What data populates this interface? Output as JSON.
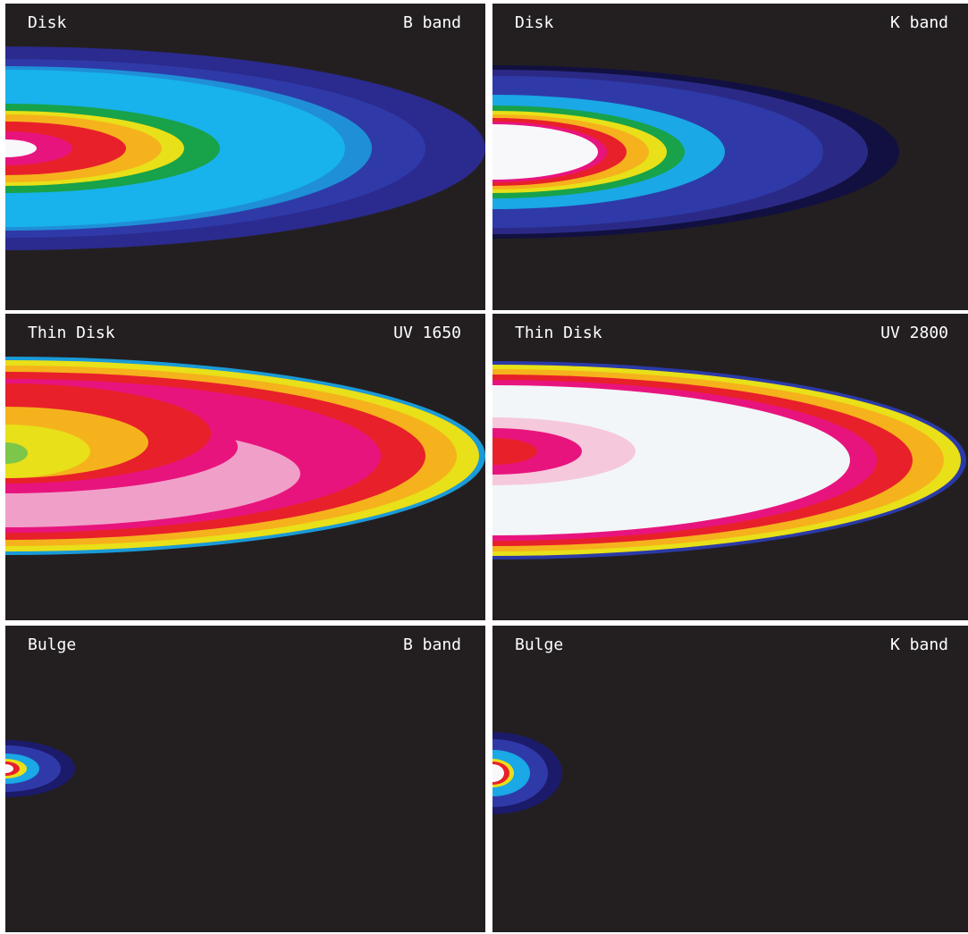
{
  "panels": [
    {
      "label": "Disk",
      "band": "B band"
    },
    {
      "label": "Disk",
      "band": "K band"
    },
    {
      "label": "Thin Disk",
      "band": "UV 1650"
    },
    {
      "label": "Thin Disk",
      "band": "UV 2800"
    },
    {
      "label": "Bulge",
      "band": "B band"
    },
    {
      "label": "Bulge",
      "band": "K band"
    }
  ]
}
